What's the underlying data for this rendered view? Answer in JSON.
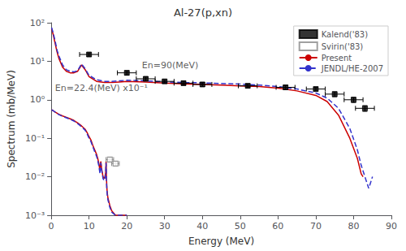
{
  "chart_data": {
    "type": "line",
    "title": "Al-27(p,xn)",
    "xlabel": "Energy (MeV)",
    "ylabel": "Spectrum (mb/MeV)",
    "log": "y",
    "grid": false,
    "legend": "upper right",
    "xlim": [
      0,
      90
    ],
    "xticks": [
      0,
      10,
      20,
      30,
      40,
      50,
      60,
      70,
      80,
      90
    ],
    "ylim": [
      0.001,
      100
    ],
    "yticks": [
      {
        "value": 0.001,
        "label": "10⁻³"
      },
      {
        "value": 0.01,
        "label": "10⁻²"
      },
      {
        "value": 0.1,
        "label": "10⁻¹"
      },
      {
        "value": 1,
        "label": "10⁰"
      },
      {
        "value": 10,
        "label": "10¹"
      },
      {
        "value": 100,
        "label": "10²"
      }
    ],
    "annotations": [
      {
        "text": "En=90(MeV)",
        "x": 24,
        "y": 5.5
      },
      {
        "text": "En=22.4(MeV) x10⁻¹",
        "x": 1.0,
        "y": 1.4
      }
    ],
    "series": [
      {
        "name": "Kalend('83)",
        "type": "scatter",
        "marker": "square",
        "color": "black",
        "x": [
          10,
          20,
          25,
          30,
          35,
          40,
          52,
          62,
          70,
          75,
          80,
          83
        ],
        "values": [
          15,
          5.0,
          3.5,
          3.0,
          2.7,
          2.5,
          2.3,
          2.1,
          1.9,
          1.4,
          1.0,
          0.6
        ],
        "yerr": [
          1.5,
          0.6,
          0.4,
          0.3,
          0.3,
          0.3,
          0.25,
          0.25,
          0.2,
          0.2,
          0.15,
          0.1
        ],
        "xerr": 2.5
      },
      {
        "name": "Svirin('83)",
        "type": "scatter",
        "marker": "open square",
        "color": "#888888",
        "x": [
          15.5,
          17.0
        ],
        "values": [
          0.028,
          0.022
        ],
        "yerr": [
          0.004,
          0.003
        ],
        "xerr": 1.0
      },
      {
        "name": "Present",
        "type": "line",
        "line_style": "solid",
        "color": "#cc0000",
        "x": [
          0.1,
          0.5,
          1,
          1.5,
          2,
          3,
          4,
          5,
          6,
          7,
          8,
          9,
          10,
          12,
          14,
          16,
          18,
          20,
          25,
          30,
          35,
          40,
          45,
          50,
          55,
          60,
          65,
          70,
          73,
          76,
          79,
          81,
          82,
          82.5
        ],
        "values": [
          70,
          50,
          30,
          18,
          12,
          7,
          5.5,
          5.0,
          5.0,
          5.5,
          8.0,
          6.0,
          4.0,
          3.0,
          2.8,
          2.8,
          2.9,
          3.0,
          2.9,
          2.7,
          2.6,
          2.5,
          2.4,
          2.3,
          2.2,
          2.0,
          1.7,
          1.3,
          0.9,
          0.4,
          0.1,
          0.03,
          0.012,
          0.01
        ]
      },
      {
        "name": "Present",
        "type": "line",
        "line_style": "solid",
        "color": "#cc0000",
        "x": [
          0.1,
          0.5,
          1,
          2,
          3,
          4,
          5,
          6,
          7,
          8,
          9,
          9.5,
          10,
          10.5,
          11,
          11.5,
          12,
          12.3,
          12.6,
          12.9,
          13.0,
          13.1,
          13.2,
          13.3,
          13.5,
          13.7,
          14.0,
          14.2,
          14.4,
          14.5,
          14.55,
          14.6,
          14.7,
          14.8,
          15.0,
          15.5,
          16,
          17,
          18,
          19,
          20
        ],
        "values": [
          0.55,
          0.52,
          0.48,
          0.42,
          0.38,
          0.35,
          0.32,
          0.29,
          0.25,
          0.21,
          0.17,
          0.14,
          0.11,
          0.09,
          0.065,
          0.05,
          0.038,
          0.03,
          0.022,
          0.014,
          0.02,
          0.025,
          0.022,
          0.017,
          0.013,
          0.01,
          0.009,
          0.01,
          0.013,
          0.025,
          0.02,
          0.01,
          0.0055,
          0.004,
          0.0028,
          0.0018,
          0.0013,
          0.001,
          0.001,
          0.001,
          0.001
        ]
      },
      {
        "name": "JENDL/HE-2007",
        "type": "line",
        "line_style": "dashed",
        "color": "#3333cc",
        "x": [
          0.1,
          0.5,
          1,
          1.5,
          2,
          3,
          4,
          5,
          6,
          7,
          8,
          9,
          10,
          12,
          14,
          16,
          18,
          20,
          25,
          30,
          35,
          40,
          45,
          50,
          55,
          60,
          65,
          70,
          73,
          76,
          79,
          81,
          82,
          83,
          84,
          85
        ],
        "values": [
          75,
          55,
          35,
          20,
          14,
          8,
          6,
          5.5,
          5.3,
          5.7,
          8.5,
          6.3,
          4.3,
          3.3,
          3.0,
          3.0,
          3.1,
          3.2,
          3.1,
          2.9,
          2.8,
          2.75,
          2.65,
          2.55,
          2.4,
          2.2,
          1.9,
          1.5,
          1.1,
          0.6,
          0.18,
          0.05,
          0.02,
          0.01,
          0.005,
          0.01
        ]
      },
      {
        "name": "JENDL/HE-2007",
        "type": "line",
        "line_style": "dashed",
        "color": "#3333cc",
        "x": [
          0.1,
          0.5,
          1,
          2,
          3,
          4,
          5,
          6,
          7,
          8,
          9,
          9.5,
          10,
          10.5,
          11,
          11.5,
          12,
          12.3,
          12.6,
          12.9,
          13.0,
          13.1,
          13.2,
          13.3,
          13.5,
          13.7,
          14.0,
          14.2,
          14.4,
          14.5,
          14.55,
          14.6,
          14.7,
          14.8,
          15.0,
          15.5,
          16,
          17,
          18,
          19,
          20
        ],
        "values": [
          0.55,
          0.52,
          0.48,
          0.41,
          0.37,
          0.34,
          0.31,
          0.28,
          0.24,
          0.2,
          0.16,
          0.13,
          0.1,
          0.082,
          0.06,
          0.045,
          0.034,
          0.026,
          0.019,
          0.012,
          0.018,
          0.023,
          0.02,
          0.015,
          0.012,
          0.009,
          0.008,
          0.009,
          0.012,
          0.023,
          0.018,
          0.009,
          0.005,
          0.0035,
          0.0025,
          0.0016,
          0.0012,
          0.001,
          0.001,
          0.001,
          0.001
        ]
      }
    ]
  }
}
